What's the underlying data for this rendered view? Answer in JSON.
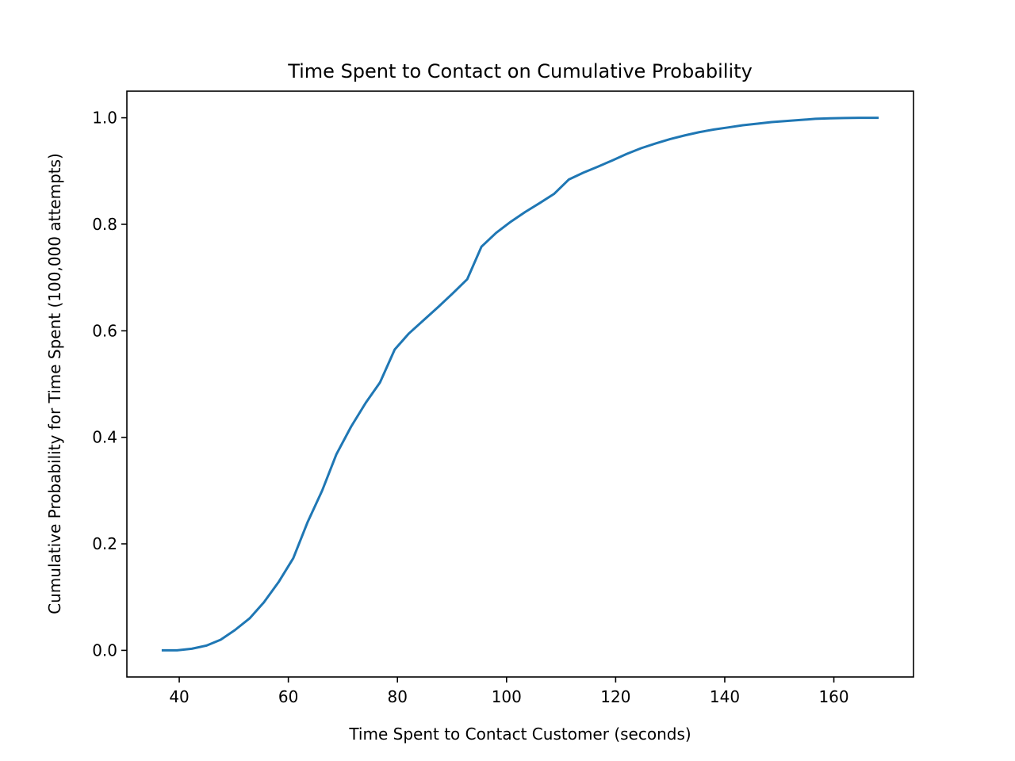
{
  "chart_data": {
    "type": "line",
    "title": "Time Spent to Contact on Cumulative Probability",
    "xlabel": "Time Spent to Contact Customer (seconds)",
    "ylabel": "Cumulative Probability for Time Spent (100,000 attempts)",
    "xlim": [
      30.4,
      174.6
    ],
    "ylim": [
      -0.05,
      1.05
    ],
    "xticks": [
      40,
      60,
      80,
      100,
      120,
      140,
      160
    ],
    "xtick_labels": [
      "40",
      "60",
      "80",
      "100",
      "120",
      "140",
      "160"
    ],
    "yticks": [
      0.0,
      0.2,
      0.4,
      0.6,
      0.8,
      1.0
    ],
    "ytick_labels": [
      "0.0",
      "0.2",
      "0.4",
      "0.6",
      "0.8",
      "1.0"
    ],
    "grid": false,
    "series": [
      {
        "color": "#1f77b4",
        "x": [
          37.0,
          39.6,
          42.3,
          45.0,
          47.6,
          50.2,
          52.9,
          55.5,
          58.2,
          60.9,
          63.5,
          66.2,
          68.8,
          71.5,
          74.2,
          76.8,
          79.5,
          82.1,
          84.8,
          87.5,
          90.1,
          92.8,
          95.4,
          98.1,
          100.8,
          103.4,
          106.1,
          108.7,
          111.4,
          114.1,
          116.7,
          119.4,
          122.0,
          124.7,
          127.4,
          130.0,
          132.7,
          135.3,
          138.0,
          140.7,
          143.3,
          146.0,
          148.6,
          151.3,
          154.0,
          156.6,
          159.3,
          161.9,
          164.6,
          168.0
        ],
        "y": [
          0.0,
          0.0,
          0.003,
          0.009,
          0.02,
          0.038,
          0.06,
          0.09,
          0.128,
          0.173,
          0.24,
          0.3,
          0.368,
          0.42,
          0.465,
          0.503,
          0.565,
          0.595,
          0.62,
          0.645,
          0.67,
          0.697,
          0.758,
          0.784,
          0.805,
          0.823,
          0.84,
          0.857,
          0.884,
          0.897,
          0.908,
          0.92,
          0.932,
          0.943,
          0.952,
          0.96,
          0.967,
          0.973,
          0.978,
          0.982,
          0.986,
          0.989,
          0.992,
          0.994,
          0.996,
          0.998,
          0.999,
          0.9995,
          1.0,
          1.0
        ]
      }
    ]
  }
}
